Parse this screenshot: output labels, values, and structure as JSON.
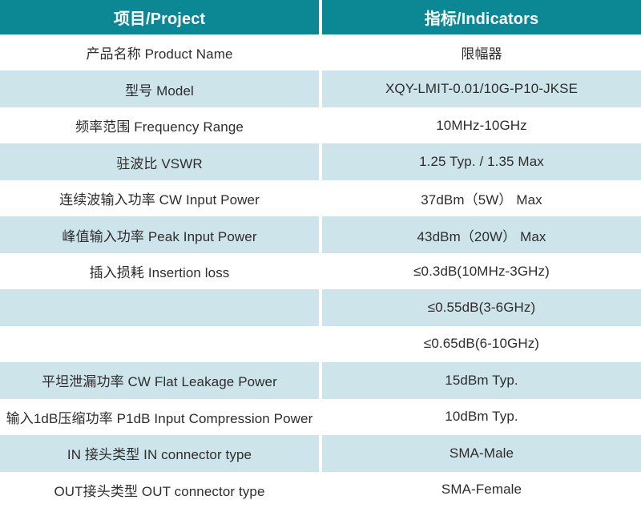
{
  "colors": {
    "header_bg": "#0b8894",
    "header_text": "#ffffff",
    "row_tint_bg": "#cde5ea",
    "row_plain_bg": "#ffffff",
    "cell_text": "#2d2d2d",
    "divider": "#ffffff"
  },
  "table": {
    "headers": {
      "project": "项目/Project",
      "indicators": "指标/Indicators"
    },
    "rows": [
      {
        "project": "产品名称 Product Name",
        "indicator": "限幅器"
      },
      {
        "project": "型号 Model",
        "indicator": "XQY-LMIT-0.01/10G-P10-JKSE"
      },
      {
        "project": "频率范围 Frequency Range",
        "indicator": "10MHz-10GHz"
      },
      {
        "project": "驻波比 VSWR",
        "indicator": "1.25 Typ. / 1.35 Max"
      },
      {
        "project": "连续波输入功率 CW Input Power",
        "indicator": "37dBm（5W） Max"
      },
      {
        "project": "峰值输入功率 Peak Input Power",
        "indicator": "43dBm（20W） Max"
      },
      {
        "project": "插入损耗 Insertion loss",
        "indicator": "≤0.3dB(10MHz-3GHz)"
      },
      {
        "project": "",
        "indicator": "≤0.55dB(3-6GHz)"
      },
      {
        "project": "",
        "indicator": "≤0.65dB(6-10GHz)"
      },
      {
        "project": "平坦泄漏功率 CW Flat Leakage Power",
        "indicator": "15dBm Typ."
      },
      {
        "project": "输入1dB压缩功率 P1dB Input Compression Power",
        "indicator": "10dBm Typ."
      },
      {
        "project": "IN 接头类型 IN connector type",
        "indicator": "SMA-Male"
      },
      {
        "project": "OUT接头类型 OUT connector type",
        "indicator": "SMA-Female"
      }
    ]
  }
}
